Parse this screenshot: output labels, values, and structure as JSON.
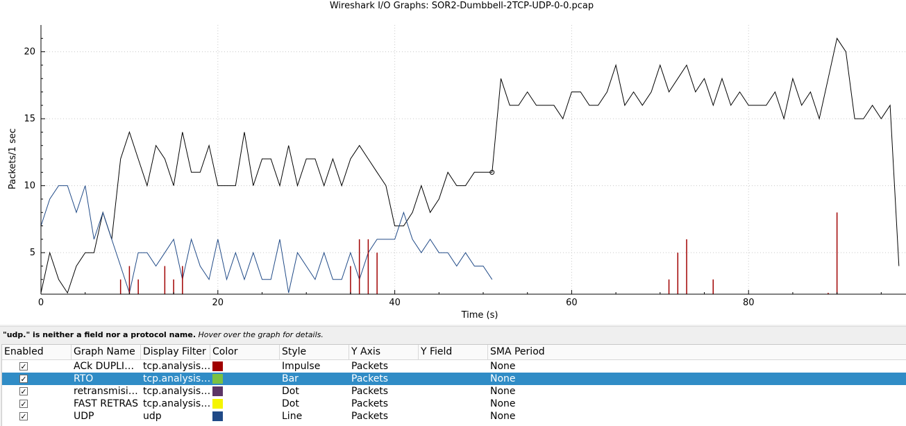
{
  "window": {
    "title": "Wireshark I/O Graphs: SOR2-Dumbbell-2TCP-UDP-0-0.pcap"
  },
  "status": {
    "bold_text": "\"udp.\" is neither a field nor a protocol name.",
    "italic_text": " Hover over the graph for details."
  },
  "table": {
    "headers": [
      "Enabled",
      "Graph Name",
      "Display Filter",
      "Color",
      "Style",
      "Y Axis",
      "Y Field",
      "SMA Period"
    ],
    "rows": [
      {
        "enabled": true,
        "name": "ACk DUPLI…",
        "filter": "tcp.analysis…",
        "color": "#a00000",
        "style": "Impulse",
        "yaxis": "Packets",
        "yfield": "",
        "sma": "None",
        "selected": false
      },
      {
        "enabled": true,
        "name": "RTO",
        "filter": "tcp.analysis…",
        "color": "#7ac142",
        "style": "Bar",
        "yaxis": "Packets",
        "yfield": "",
        "sma": "None",
        "selected": true
      },
      {
        "enabled": true,
        "name": "retransmisi…",
        "filter": "tcp.analysis…",
        "color": "#5c3566",
        "style": "Dot",
        "yaxis": "Packets",
        "yfield": "",
        "sma": "None",
        "selected": false
      },
      {
        "enabled": true,
        "name": "FAST RETRAS",
        "filter": "tcp.analysis…",
        "color": "#f5f500",
        "style": "Dot",
        "yaxis": "Packets",
        "yfield": "",
        "sma": "None",
        "selected": false
      },
      {
        "enabled": true,
        "name": "UDP",
        "filter": "udp",
        "color": "#204a87",
        "style": "Line",
        "yaxis": "Packets",
        "yfield": "",
        "sma": "None",
        "selected": false
      }
    ]
  },
  "chart_data": {
    "type": "line",
    "title": "Wireshark I/O Graphs: SOR2-Dumbbell-2TCP-UDP-0-0.pcap",
    "xlabel": "Time (s)",
    "ylabel": "Packets/1 sec",
    "xlim": [
      0,
      97.8
    ],
    "ylim": [
      1.9,
      22
    ],
    "xticks": [
      0,
      20,
      40,
      60,
      80
    ],
    "yticks": [
      5,
      10,
      15,
      20
    ],
    "grid": true,
    "series": [
      {
        "name": "",
        "style": "line",
        "color": "#000000",
        "x": [
          0,
          1,
          2,
          3,
          4,
          5,
          6,
          7,
          8,
          9,
          10,
          11,
          12,
          13,
          14,
          15,
          16,
          17,
          18,
          19,
          20,
          21,
          22,
          23,
          24,
          25,
          26,
          27,
          28,
          29,
          30,
          31,
          32,
          33,
          34,
          35,
          36,
          37,
          38,
          39,
          40,
          41,
          42,
          43,
          44,
          45,
          46,
          47,
          48,
          49,
          50,
          51,
          52,
          53,
          54,
          55,
          56,
          57,
          58,
          59,
          60,
          61,
          62,
          63,
          64,
          65,
          66,
          67,
          68,
          69,
          70,
          71,
          72,
          73,
          74,
          75,
          76,
          77,
          78,
          79,
          80,
          81,
          82,
          83,
          84,
          85,
          86,
          87,
          88,
          89,
          90,
          91,
          92,
          93,
          94,
          95,
          96,
          97
        ],
        "y": [
          2,
          5,
          3,
          2,
          4,
          5,
          5,
          8,
          6,
          12,
          14,
          12,
          10,
          13,
          12,
          10,
          14,
          11,
          11,
          13,
          10,
          10,
          10,
          14,
          10,
          12,
          12,
          10,
          13,
          10,
          12,
          12,
          10,
          12,
          10,
          12,
          13,
          12,
          11,
          10,
          7,
          7,
          8,
          10,
          8,
          9,
          11,
          10,
          10,
          11,
          11,
          11,
          18,
          16,
          16,
          17,
          16,
          16,
          16,
          15,
          17,
          17,
          16,
          16,
          17,
          19,
          16,
          17,
          16,
          17,
          19,
          17,
          18,
          19,
          17,
          18,
          16,
          18,
          16,
          17,
          16,
          16,
          16,
          17,
          15,
          18,
          16,
          17,
          15,
          18,
          21,
          20,
          15,
          15,
          16,
          15,
          16,
          4
        ],
        "marker_at_x": 51
      },
      {
        "name": "UDP",
        "style": "line",
        "color": "#204a87",
        "x": [
          0,
          1,
          2,
          3,
          4,
          5,
          6,
          7,
          8,
          9,
          10,
          11,
          12,
          13,
          14,
          15,
          16,
          17,
          18,
          19,
          20,
          21,
          22,
          23,
          24,
          25,
          26,
          27,
          28,
          29,
          30,
          31,
          32,
          33,
          34,
          35,
          36,
          37,
          38,
          39,
          40,
          41,
          42,
          43,
          44,
          45,
          46,
          47,
          48,
          49,
          50,
          51
        ],
        "y": [
          7,
          9,
          10,
          10,
          8,
          10,
          6,
          8,
          6,
          4,
          2,
          5,
          5,
          4,
          5,
          6,
          3,
          6,
          4,
          3,
          6,
          3,
          5,
          3,
          5,
          3,
          3,
          6,
          2,
          5,
          4,
          3,
          5,
          3,
          3,
          5,
          3,
          5,
          6,
          6,
          6,
          8,
          6,
          5,
          6,
          5,
          5,
          4,
          5,
          4,
          4,
          3
        ]
      },
      {
        "name": "ACk DUPLI…",
        "style": "impulse",
        "color": "#a00000",
        "x": [
          9,
          10,
          11,
          14,
          15,
          16,
          35,
          36,
          37,
          38,
          71,
          72,
          73,
          76,
          89,
          90
        ],
        "y": [
          3,
          4,
          3,
          4,
          3,
          4,
          4,
          6,
          6,
          5,
          3,
          5,
          6,
          3,
          2,
          8
        ]
      }
    ]
  }
}
